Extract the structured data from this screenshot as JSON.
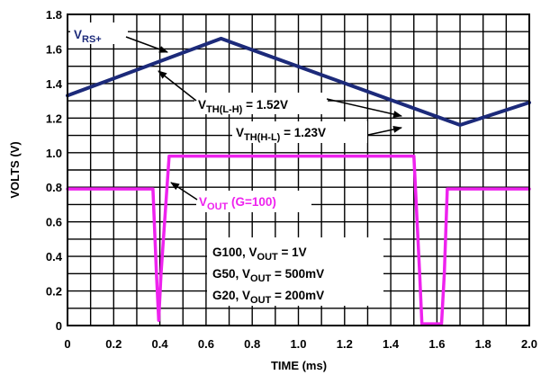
{
  "chart_data": {
    "type": "line",
    "xlabel": "TIME (ms)",
    "ylabel": "VOLTS (V)",
    "xlim": [
      0,
      2.0
    ],
    "ylim": [
      0,
      1.8
    ],
    "x_ticks": [
      "0",
      "0.2",
      "0.4",
      "0.6",
      "0.8",
      "1.0",
      "1.2",
      "1.4",
      "1.6",
      "1.8",
      "2.0"
    ],
    "y_ticks": [
      "0",
      "0.2",
      "0.4",
      "0.6",
      "0.8",
      "1.0",
      "1.2",
      "1.4",
      "1.6",
      "1.8"
    ],
    "grid": true,
    "series": [
      {
        "color": "#1c2a7a",
        "x": [
          0,
          0.665,
          1.7,
          2.0
        ],
        "y": [
          1.33,
          1.66,
          1.16,
          1.29
        ]
      },
      {
        "color": "#ee22ee",
        "x": [
          0,
          0.37,
          0.385,
          0.395,
          0.405,
          0.44,
          1.5,
          1.525,
          1.535,
          1.62,
          1.632,
          1.645,
          2.0
        ],
        "y": [
          0.79,
          0.79,
          0.3,
          0.03,
          0.3,
          0.98,
          0.98,
          0.3,
          0.01,
          0.01,
          0.3,
          0.79,
          0.79
        ]
      }
    ],
    "annotations": {
      "vrs": {
        "main": "V",
        "sub": "RS+"
      },
      "vth_lh": {
        "main": "V",
        "sub": "TH(L-H)",
        "tail": " = 1.52V"
      },
      "vth_hl": {
        "main": "V",
        "sub": "TH(H-L)",
        "tail": " = 1.23V"
      },
      "vout": {
        "main": "V",
        "sub": "OUT",
        "tail": " (G=100)"
      },
      "gain_lines": [
        {
          "prefix": "G100, V",
          "sub": "OUT",
          "tail": " = 1V"
        },
        {
          "prefix": "G50, V",
          "sub": "OUT",
          "tail": " = 500mV"
        },
        {
          "prefix": "G20, V",
          "sub": "OUT",
          "tail": " = 200mV"
        }
      ]
    }
  }
}
